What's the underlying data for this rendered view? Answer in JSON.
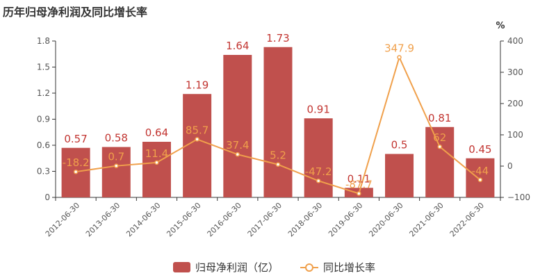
{
  "chart_data": {
    "type": "bar",
    "title": "历年归母净利润及同比增长率",
    "categories": [
      "2012-06-30",
      "2013-06-30",
      "2014-06-30",
      "2015-06-30",
      "2016-06-30",
      "2017-06-30",
      "2018-06-30",
      "2019-06-30",
      "2020-06-30",
      "2021-06-30",
      "2022-06-30"
    ],
    "series": [
      {
        "name": "归母净利润（亿）",
        "type": "bar",
        "axis": "left",
        "color": "#c0504d",
        "values": [
          0.57,
          0.58,
          0.64,
          1.19,
          1.64,
          1.73,
          0.91,
          0.11,
          0.5,
          0.81,
          0.45
        ],
        "labels": [
          "0.57",
          "0.58",
          "0.64",
          "1.19",
          "1.64",
          "1.73",
          "0.91",
          "0.11",
          "0.5",
          "0.81",
          "0.45"
        ]
      },
      {
        "name": "同比增长率",
        "type": "line",
        "axis": "right",
        "color": "#f0a04b",
        "values": [
          -18.2,
          0.7,
          11.4,
          85.7,
          37.4,
          5.2,
          -47.2,
          -87.7,
          347.9,
          62,
          -44
        ],
        "labels": [
          "-18.2",
          "0.7",
          "11.4",
          "85.7",
          "37.4",
          "5.2",
          "-47.2",
          "-87.7",
          "347.9",
          "62",
          "-44"
        ]
      }
    ],
    "y_left": {
      "min": 0,
      "max": 1.8,
      "ticks": [
        "0",
        "0.3",
        "0.6",
        "0.9",
        "1.2",
        "1.5",
        "1.8"
      ]
    },
    "y_right": {
      "min": -100,
      "max": 400,
      "ticks": [
        "−100",
        "0",
        "100",
        "200",
        "300",
        "400"
      ],
      "unit": "%"
    },
    "legend_position": "bottom-center",
    "grid": false
  }
}
